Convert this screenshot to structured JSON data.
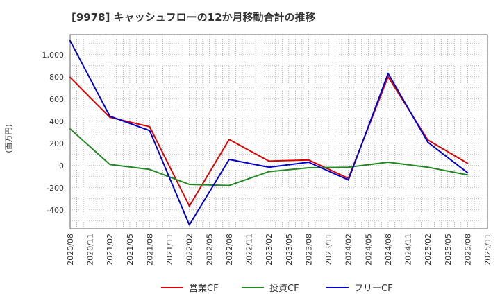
{
  "chart_data": {
    "type": "line",
    "title": "[9978]  キャッシュフローの12か月移動合計の推移",
    "ylabel": "(百万円)",
    "xlabel": "",
    "ylim": [
      -570,
      1180
    ],
    "yticks": [
      -400,
      -200,
      0,
      200,
      400,
      600,
      800,
      1000
    ],
    "ytick_labels": [
      "-400",
      "-200",
      "0",
      "200",
      "400",
      "600",
      "800",
      "1,000"
    ],
    "categories": [
      "2020/08",
      "2020/11",
      "2021/02",
      "2021/05",
      "2021/08",
      "2021/11",
      "2022/02",
      "2022/05",
      "2022/08",
      "2022/11",
      "2023/02",
      "2023/05",
      "2023/08",
      "2023/11",
      "2024/02",
      "2024/05",
      "2024/08",
      "2024/11",
      "2025/02",
      "2025/05",
      "2025/08",
      "2025/11"
    ],
    "grid": true,
    "legend_position": "bottom",
    "series": [
      {
        "name": "営業CF",
        "color": "#dd0000",
        "x": [
          "2020/08",
          "2021/02",
          "2021/08",
          "2022/02",
          "2022/08",
          "2023/02",
          "2023/08",
          "2024/02",
          "2024/08",
          "2025/02",
          "2025/08"
        ],
        "values": [
          795,
          435,
          350,
          -365,
          235,
          40,
          50,
          -115,
          800,
          230,
          20
        ]
      },
      {
        "name": "投資CF",
        "color": "#228822",
        "x": [
          "2020/08",
          "2021/02",
          "2021/08",
          "2022/02",
          "2022/08",
          "2023/02",
          "2023/08",
          "2024/02",
          "2024/08",
          "2025/02",
          "2025/08"
        ],
        "values": [
          330,
          10,
          -35,
          -170,
          -180,
          -55,
          -20,
          -15,
          30,
          -15,
          -85
        ]
      },
      {
        "name": "フリーCF",
        "color": "#0000cc",
        "x": [
          "2020/08",
          "2021/02",
          "2021/08",
          "2022/02",
          "2022/08",
          "2023/02",
          "2023/08",
          "2024/02",
          "2024/08",
          "2025/02",
          "2025/08"
        ],
        "values": [
          1125,
          445,
          315,
          -535,
          55,
          -15,
          30,
          -130,
          830,
          210,
          -65
        ]
      }
    ]
  }
}
